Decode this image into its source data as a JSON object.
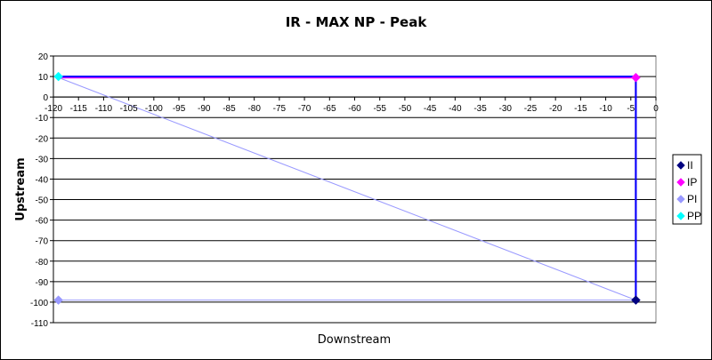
{
  "chart_data": {
    "type": "scatter",
    "title": "IR - MAX NP - Peak",
    "xlabel": "Downstream",
    "ylabel": "Upstream",
    "xlim": [
      -120,
      0
    ],
    "ylim": [
      -110,
      20
    ],
    "x_ticks": [
      -120,
      -115,
      -110,
      -105,
      -100,
      -95,
      -90,
      -85,
      -80,
      -75,
      -70,
      -65,
      -60,
      -55,
      -50,
      -45,
      -40,
      -35,
      -30,
      -25,
      -20,
      -15,
      -10,
      -5,
      0
    ],
    "y_ticks": [
      20,
      10,
      0,
      -10,
      -20,
      -30,
      -40,
      -50,
      -60,
      -70,
      -80,
      -90,
      -100,
      -110
    ],
    "grid": "horizontal",
    "legend_position": "right",
    "series": [
      {
        "name": "II",
        "color": "#000080",
        "marker": "diamond",
        "points": [
          {
            "x": -4,
            "y": 10
          },
          {
            "x": -4,
            "y": -99
          }
        ]
      },
      {
        "name": "IP",
        "color": "#FF00FF",
        "marker": "diamond",
        "points": [
          {
            "x": -119,
            "y": 9.5
          },
          {
            "x": -4,
            "y": 9.5
          },
          {
            "x": -4,
            "y": -99
          }
        ]
      },
      {
        "name": "PI",
        "color": "#9999FF",
        "marker": "diamond",
        "points": [
          {
            "x": -119,
            "y": 9.5
          },
          {
            "x": -4,
            "y": -99
          },
          {
            "x": -119,
            "y": -99
          }
        ]
      },
      {
        "name": "PP",
        "color": "#0000FF",
        "marker_color": "#00FFFF",
        "marker": "diamond",
        "points": [
          {
            "x": -119,
            "y": 10
          },
          {
            "x": -4,
            "y": 10
          },
          {
            "x": -4,
            "y": -99
          }
        ]
      }
    ]
  }
}
